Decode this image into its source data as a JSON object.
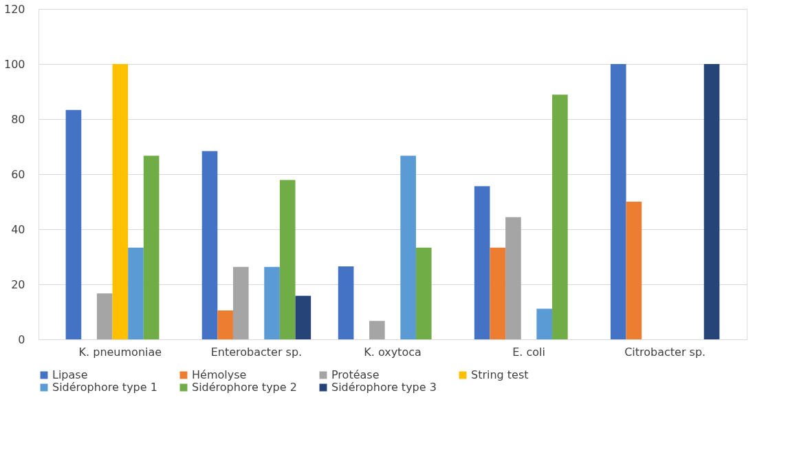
{
  "chart_data": {
    "type": "bar",
    "categories": [
      "K. pneumoniae",
      "Enterobacter sp.",
      "K. oxytoca",
      "E. coli",
      "Citrobacter sp."
    ],
    "series": [
      {
        "name": "Lipase",
        "color": "#4472c4",
        "values": [
          83.3,
          68.4,
          26.5,
          55.6,
          100
        ]
      },
      {
        "name": "Hémolyse",
        "color": "#ed7d31",
        "values": [
          0,
          10.5,
          0,
          33.3,
          50
        ]
      },
      {
        "name": "Protéase",
        "color": "#a5a5a5",
        "values": [
          16.7,
          26.3,
          6.7,
          44.4,
          0
        ]
      },
      {
        "name": "String test",
        "color": "#ffc000",
        "values": [
          100,
          0,
          0,
          0,
          0
        ]
      },
      {
        "name": "Sidérophore type 1",
        "color": "#5b9bd5",
        "values": [
          33.3,
          26.3,
          66.7,
          11.1,
          0
        ]
      },
      {
        "name": "Sidérophore type 2",
        "color": "#70ad47",
        "values": [
          66.7,
          57.9,
          33.3,
          88.9,
          0
        ]
      },
      {
        "name": "Sidérophore type 3",
        "color": "#264478",
        "values": [
          0,
          15.8,
          0,
          0,
          100
        ]
      }
    ],
    "ylim": [
      0,
      120
    ],
    "yticks": [
      0,
      20,
      40,
      60,
      80,
      100,
      120
    ],
    "grid": "y",
    "legend": "bottom"
  }
}
